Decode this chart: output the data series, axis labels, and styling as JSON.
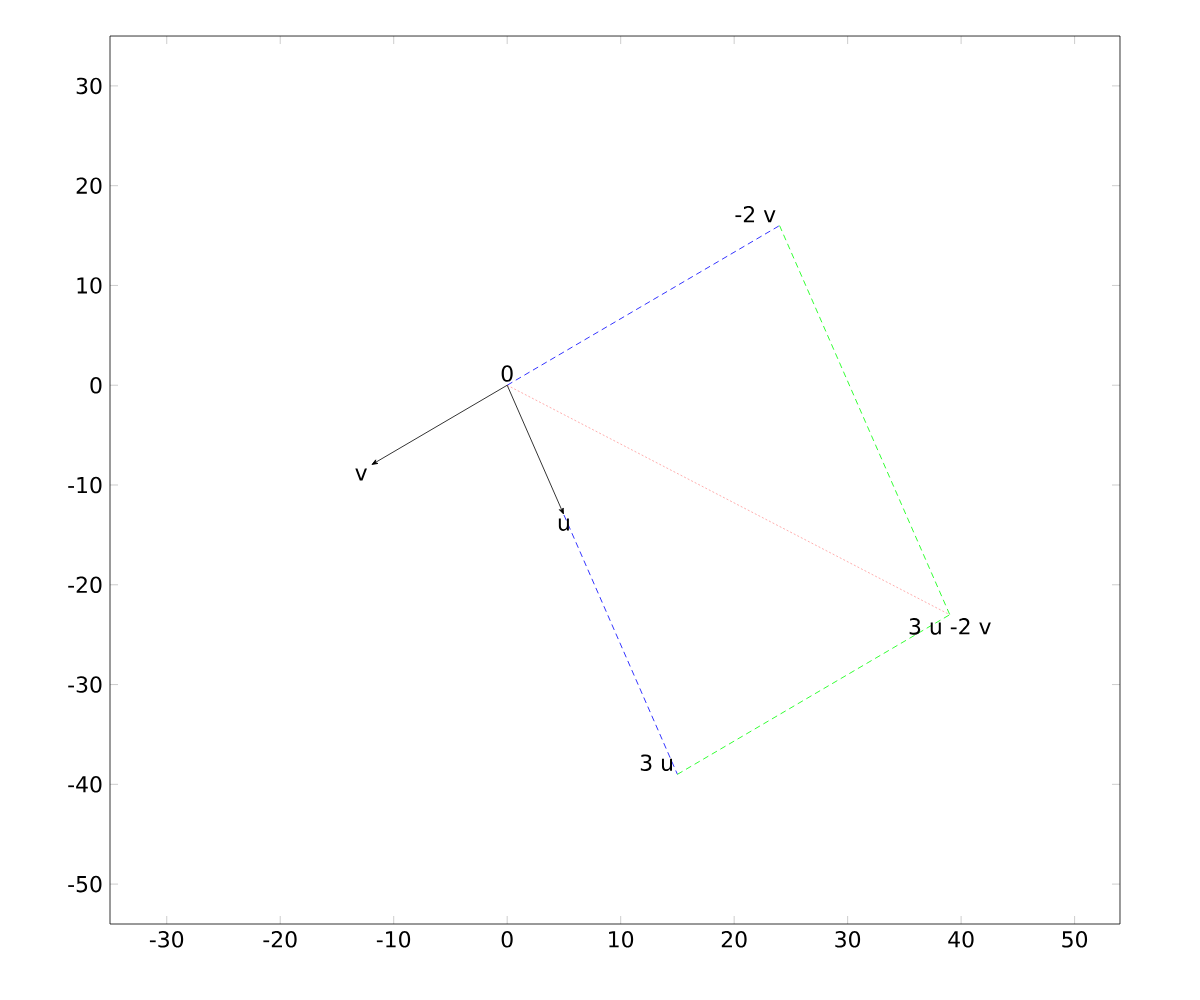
{
  "chart_data": {
    "type": "line",
    "xlim": [
      -35,
      54
    ],
    "ylim": [
      -54,
      35
    ],
    "xticks": [
      -30,
      -20,
      -10,
      0,
      10,
      20,
      30,
      40,
      50
    ],
    "yticks": [
      -50,
      -40,
      -30,
      -20,
      -10,
      0,
      10,
      20,
      30
    ],
    "series": [
      {
        "color": "#0000ff",
        "line_style": "dashed",
        "x": [
          5,
          15
        ],
        "values": [
          -13,
          -39
        ]
      },
      {
        "color": "#0000ff",
        "line_style": "dashed",
        "x": [
          0,
          24
        ],
        "values": [
          0,
          16
        ]
      },
      {
        "color": "#00ff00",
        "line_style": "dashed",
        "x": [
          24,
          39
        ],
        "values": [
          16,
          -23
        ]
      },
      {
        "color": "#00ff00",
        "line_style": "dashed",
        "x": [
          15,
          39
        ],
        "values": [
          -39,
          -23
        ]
      },
      {
        "color": "#ff9999",
        "line_style": "dotted",
        "x": [
          0,
          39
        ],
        "values": [
          0,
          -23
        ]
      }
    ],
    "annotations": [
      {
        "text": "0",
        "x": 0,
        "y": 0
      },
      {
        "text": "v",
        "x": -12,
        "y": -8
      },
      {
        "text": "u",
        "x": 5,
        "y": -13
      },
      {
        "text": "-2 v",
        "x": 24,
        "y": 16
      },
      {
        "text": "3 u -2 v",
        "x": 39,
        "y": -23
      },
      {
        "text": "3 u",
        "x": 15,
        "y": -39
      }
    ],
    "grid": false,
    "marker": "none"
  }
}
